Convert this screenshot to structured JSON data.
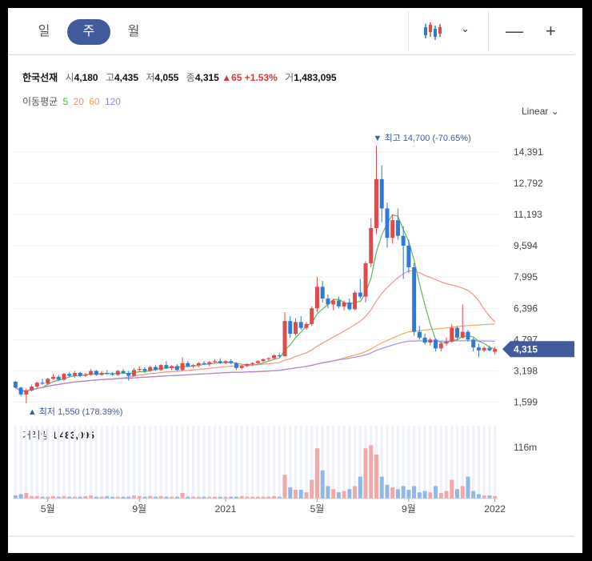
{
  "periods": [
    "일",
    "주",
    "월"
  ],
  "stock": {
    "name": "한국선재",
    "open_label": "시",
    "open": "4,180",
    "high_label": "고",
    "high": "4,435",
    "low_label": "저",
    "low": "4,055",
    "close_label": "종",
    "close": "4,315",
    "change": "▲65",
    "change_pct": "+1.53%",
    "volume_label": "거",
    "volume": "1,483,095"
  },
  "ma": {
    "label": "이동평균",
    "periods": [
      "5",
      "20",
      "60",
      "120"
    ],
    "colors": [
      "#4caf50",
      "#f08a7a",
      "#f0a050",
      "#9e7fd8"
    ]
  },
  "scale_label": "Linear",
  "volume_panel": {
    "label": "거래량",
    "value": "1,483,095",
    "max_tick": "116m"
  },
  "colors": {
    "up": "#e04a4a",
    "down": "#2e7ad8",
    "accent": "#3f5b9c"
  },
  "chart_data": {
    "type": "candlestick",
    "period": "weekly",
    "y_ticks": [
      "14,391",
      "12,792",
      "11,193",
      "9,594",
      "7,995",
      "6,396",
      "4,797",
      "3,198",
      "1,599"
    ],
    "y_tick_values": [
      14391,
      12792,
      11193,
      9594,
      7995,
      6396,
      4797,
      3198,
      1599
    ],
    "x_ticks": [
      "5월",
      "9월",
      "2021",
      "5월",
      "9월",
      "2022"
    ],
    "current_price_label": "4,315",
    "high_annotation": "▼ 최고 14,700 (-70.65%)",
    "low_annotation": "▲ 최저 1,550 (178.39%)",
    "ohlc": [
      [
        2650,
        2700,
        2300,
        2350
      ],
      [
        2350,
        2400,
        1900,
        2000
      ],
      [
        2000,
        2300,
        1550,
        2200
      ],
      [
        2200,
        2500,
        2150,
        2400
      ],
      [
        2400,
        2650,
        2350,
        2600
      ],
      [
        2600,
        2800,
        2500,
        2550
      ],
      [
        2550,
        2850,
        2500,
        2800
      ],
      [
        2800,
        3050,
        2750,
        2900
      ],
      [
        2900,
        3000,
        2700,
        2750
      ],
      [
        2750,
        3100,
        2700,
        3050
      ],
      [
        3050,
        3150,
        2900,
        2950
      ],
      [
        2950,
        3200,
        2850,
        3100
      ],
      [
        3100,
        3150,
        2900,
        2950
      ],
      [
        2950,
        3100,
        2900,
        3000
      ],
      [
        3000,
        3300,
        2950,
        3200
      ],
      [
        3200,
        3250,
        2950,
        3000
      ],
      [
        3000,
        3200,
        2950,
        3100
      ],
      [
        3100,
        3250,
        3000,
        3050
      ],
      [
        3050,
        3150,
        2950,
        3000
      ],
      [
        3000,
        3250,
        2950,
        3200
      ],
      [
        3200,
        3300,
        3050,
        3100
      ],
      [
        3100,
        3200,
        2700,
        2950
      ],
      [
        2950,
        3350,
        2900,
        3250
      ],
      [
        3250,
        3450,
        3150,
        3300
      ],
      [
        3300,
        3400,
        3100,
        3200
      ],
      [
        3200,
        3450,
        3150,
        3400
      ],
      [
        3400,
        3500,
        3200,
        3250
      ],
      [
        3250,
        3550,
        3200,
        3500
      ],
      [
        3500,
        3700,
        3300,
        3350
      ],
      [
        3350,
        3500,
        3250,
        3450
      ],
      [
        3450,
        3550,
        3200,
        3250
      ],
      [
        3250,
        3900,
        3200,
        3600
      ],
      [
        3600,
        3700,
        3400,
        3450
      ],
      [
        3450,
        3550,
        3350,
        3500
      ],
      [
        3500,
        3650,
        3400,
        3600
      ],
      [
        3600,
        3700,
        3500,
        3550
      ],
      [
        3550,
        3700,
        3450,
        3650
      ],
      [
        3650,
        3800,
        3600,
        3700
      ],
      [
        3700,
        3850,
        3550,
        3600
      ],
      [
        3600,
        3750,
        3550,
        3700
      ],
      [
        3700,
        3800,
        3550,
        3600
      ],
      [
        3600,
        3650,
        3250,
        3350
      ],
      [
        3350,
        3500,
        3300,
        3450
      ],
      [
        3450,
        3600,
        3400,
        3550
      ],
      [
        3550,
        3650,
        3450,
        3600
      ],
      [
        3600,
        3750,
        3550,
        3700
      ],
      [
        3700,
        3850,
        3650,
        3800
      ],
      [
        3800,
        3900,
        3700,
        3850
      ],
      [
        3850,
        4050,
        3800,
        4000
      ],
      [
        4000,
        4100,
        3900,
        3950
      ],
      [
        3950,
        6200,
        3950,
        5750
      ],
      [
        5750,
        6000,
        4900,
        5100
      ],
      [
        5100,
        5900,
        5000,
        5700
      ],
      [
        5700,
        6000,
        5300,
        5400
      ],
      [
        5400,
        5700,
        5300,
        5600
      ],
      [
        5600,
        6500,
        5500,
        6400
      ],
      [
        6400,
        8000,
        6200,
        7500
      ],
      [
        7500,
        7800,
        6700,
        6900
      ],
      [
        6900,
        7100,
        6400,
        6600
      ],
      [
        6600,
        6900,
        6300,
        6800
      ],
      [
        6800,
        7000,
        6400,
        6500
      ],
      [
        6500,
        6800,
        6300,
        6700
      ],
      [
        6700,
        6900,
        6300,
        6350
      ],
      [
        6350,
        7300,
        6300,
        7200
      ],
      [
        7200,
        7900,
        6900,
        7000
      ],
      [
        7000,
        8800,
        6700,
        8700
      ],
      [
        8700,
        11000,
        8500,
        10500
      ],
      [
        10500,
        14700,
        10200,
        13000
      ],
      [
        13000,
        13700,
        10800,
        11500
      ],
      [
        11500,
        11800,
        9500,
        10000
      ],
      [
        10000,
        11200,
        9700,
        10900
      ],
      [
        10900,
        11500,
        9900,
        10100
      ],
      [
        10100,
        10600,
        7900,
        9600
      ],
      [
        9600,
        9900,
        8200,
        8500
      ],
      [
        8500,
        8700,
        5000,
        5200
      ],
      [
        5200,
        5500,
        4800,
        4900
      ],
      [
        4900,
        5100,
        4550,
        4650
      ],
      [
        4650,
        4900,
        4500,
        4800
      ],
      [
        4800,
        4850,
        4200,
        4350
      ],
      [
        4350,
        4700,
        4200,
        4600
      ],
      [
        4600,
        4900,
        4500,
        4700
      ],
      [
        4700,
        5600,
        4650,
        5400
      ],
      [
        5400,
        5500,
        4800,
        4900
      ],
      [
        4900,
        6600,
        4850,
        5200
      ],
      [
        5200,
        5300,
        4700,
        4800
      ],
      [
        4800,
        4900,
        4200,
        4400
      ],
      [
        4400,
        4600,
        3900,
        4250
      ],
      [
        4250,
        4450,
        4150,
        4380
      ],
      [
        4380,
        4500,
        4200,
        4250
      ],
      [
        4180,
        4435,
        4055,
        4315
      ]
    ],
    "volume_scale_max": "116m",
    "volume": [
      5,
      7,
      9,
      4,
      4,
      3,
      3,
      4,
      3,
      4,
      3,
      3,
      3,
      4,
      5,
      3,
      3,
      4,
      3,
      3,
      3,
      3,
      5,
      4,
      3,
      4,
      3,
      4,
      3,
      3,
      3,
      9,
      3,
      3,
      3,
      3,
      3,
      3,
      3,
      3,
      3,
      3,
      4,
      3,
      3,
      3,
      3,
      3,
      4,
      3,
      38,
      18,
      14,
      14,
      10,
      30,
      80,
      45,
      20,
      15,
      10,
      12,
      15,
      20,
      35,
      80,
      85,
      70,
      35,
      22,
      18,
      15,
      20,
      14,
      20,
      10,
      12,
      10,
      20,
      9,
      12,
      30,
      15,
      20,
      35,
      12,
      7,
      5,
      5,
      4
    ]
  }
}
